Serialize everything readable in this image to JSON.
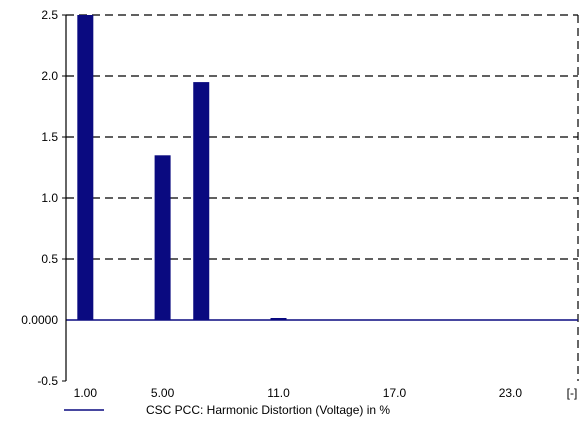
{
  "chart_data": {
    "type": "bar",
    "x": [
      1,
      3,
      5,
      7,
      9,
      11,
      13,
      15,
      17,
      19,
      21,
      23,
      25
    ],
    "values": [
      2.5,
      0,
      1.35,
      1.95,
      0,
      0.01,
      0,
      0,
      0,
      0,
      0,
      0,
      0
    ],
    "series": [
      {
        "name": "CSC PCC: Harmonic Distortion (Voltage) in %",
        "values": [
          2.5,
          0,
          1.35,
          1.95,
          0,
          0.01,
          0,
          0,
          0,
          0,
          0,
          0,
          0
        ],
        "color": "#0a0a80"
      }
    ],
    "title": "",
    "xlabel": "[-]",
    "ylabel": "",
    "ylim": [
      -0.5,
      2.5
    ],
    "xlim": [
      0,
      26.5
    ],
    "y_ticks": [
      -0.5,
      0.5,
      1.0,
      1.5,
      2.0,
      2.5
    ],
    "y_tick_labels": [
      "-0.5",
      "0.5",
      "1.0",
      "1.5",
      "2.0",
      "2.5"
    ],
    "zero_label": "0.0000",
    "x_ticks": [
      1,
      5,
      11,
      17,
      23
    ],
    "x_tick_labels": [
      "1.00",
      "5.00",
      "11.0",
      "17.0",
      "23.0"
    ],
    "grid": true,
    "grid_style": "dashed",
    "legend_position": "bottom",
    "baseline_color": "#0a0a80",
    "bar_color": "#0a0a80"
  }
}
